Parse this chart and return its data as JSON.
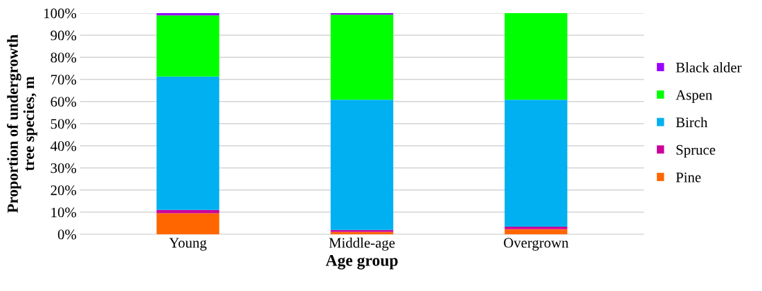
{
  "chart_data": {
    "type": "bar",
    "stacked": true,
    "xlabel": "Age group",
    "ylabel": "Proportion of undergrowth\ntree species, m",
    "categories": [
      "Young",
      "Middle-age",
      "Overgrown"
    ],
    "series": [
      {
        "name": "Pine",
        "color": "#ff6600",
        "values": [
          9.5,
          1.1,
          2.3
        ]
      },
      {
        "name": "Spruce",
        "color": "#cc0099",
        "values": [
          1.5,
          0.8,
          1.1
        ]
      },
      {
        "name": "Birch",
        "color": "#00b0f0",
        "values": [
          60.3,
          58.9,
          57.4
        ]
      },
      {
        "name": "Aspen",
        "color": "#00ff00",
        "values": [
          27.7,
          38.5,
          39.2
        ]
      },
      {
        "name": "Black alder",
        "color": "#9900ff",
        "values": [
          1.0,
          0.7,
          0
        ]
      }
    ],
    "ylim": [
      0,
      100
    ],
    "yticks": [
      {
        "value": 0,
        "label": "0%"
      },
      {
        "value": 10,
        "label": "10%"
      },
      {
        "value": 20,
        "label": "20%"
      },
      {
        "value": 30,
        "label": "30%"
      },
      {
        "value": 40,
        "label": "40%"
      },
      {
        "value": 50,
        "label": "50%"
      },
      {
        "value": 60,
        "label": "60%"
      },
      {
        "value": 70,
        "label": "70%"
      },
      {
        "value": 80,
        "label": "80%"
      },
      {
        "value": 90,
        "label": "90%"
      },
      {
        "value": 100,
        "label": "100%"
      }
    ],
    "grid": "y",
    "legend": "right"
  }
}
